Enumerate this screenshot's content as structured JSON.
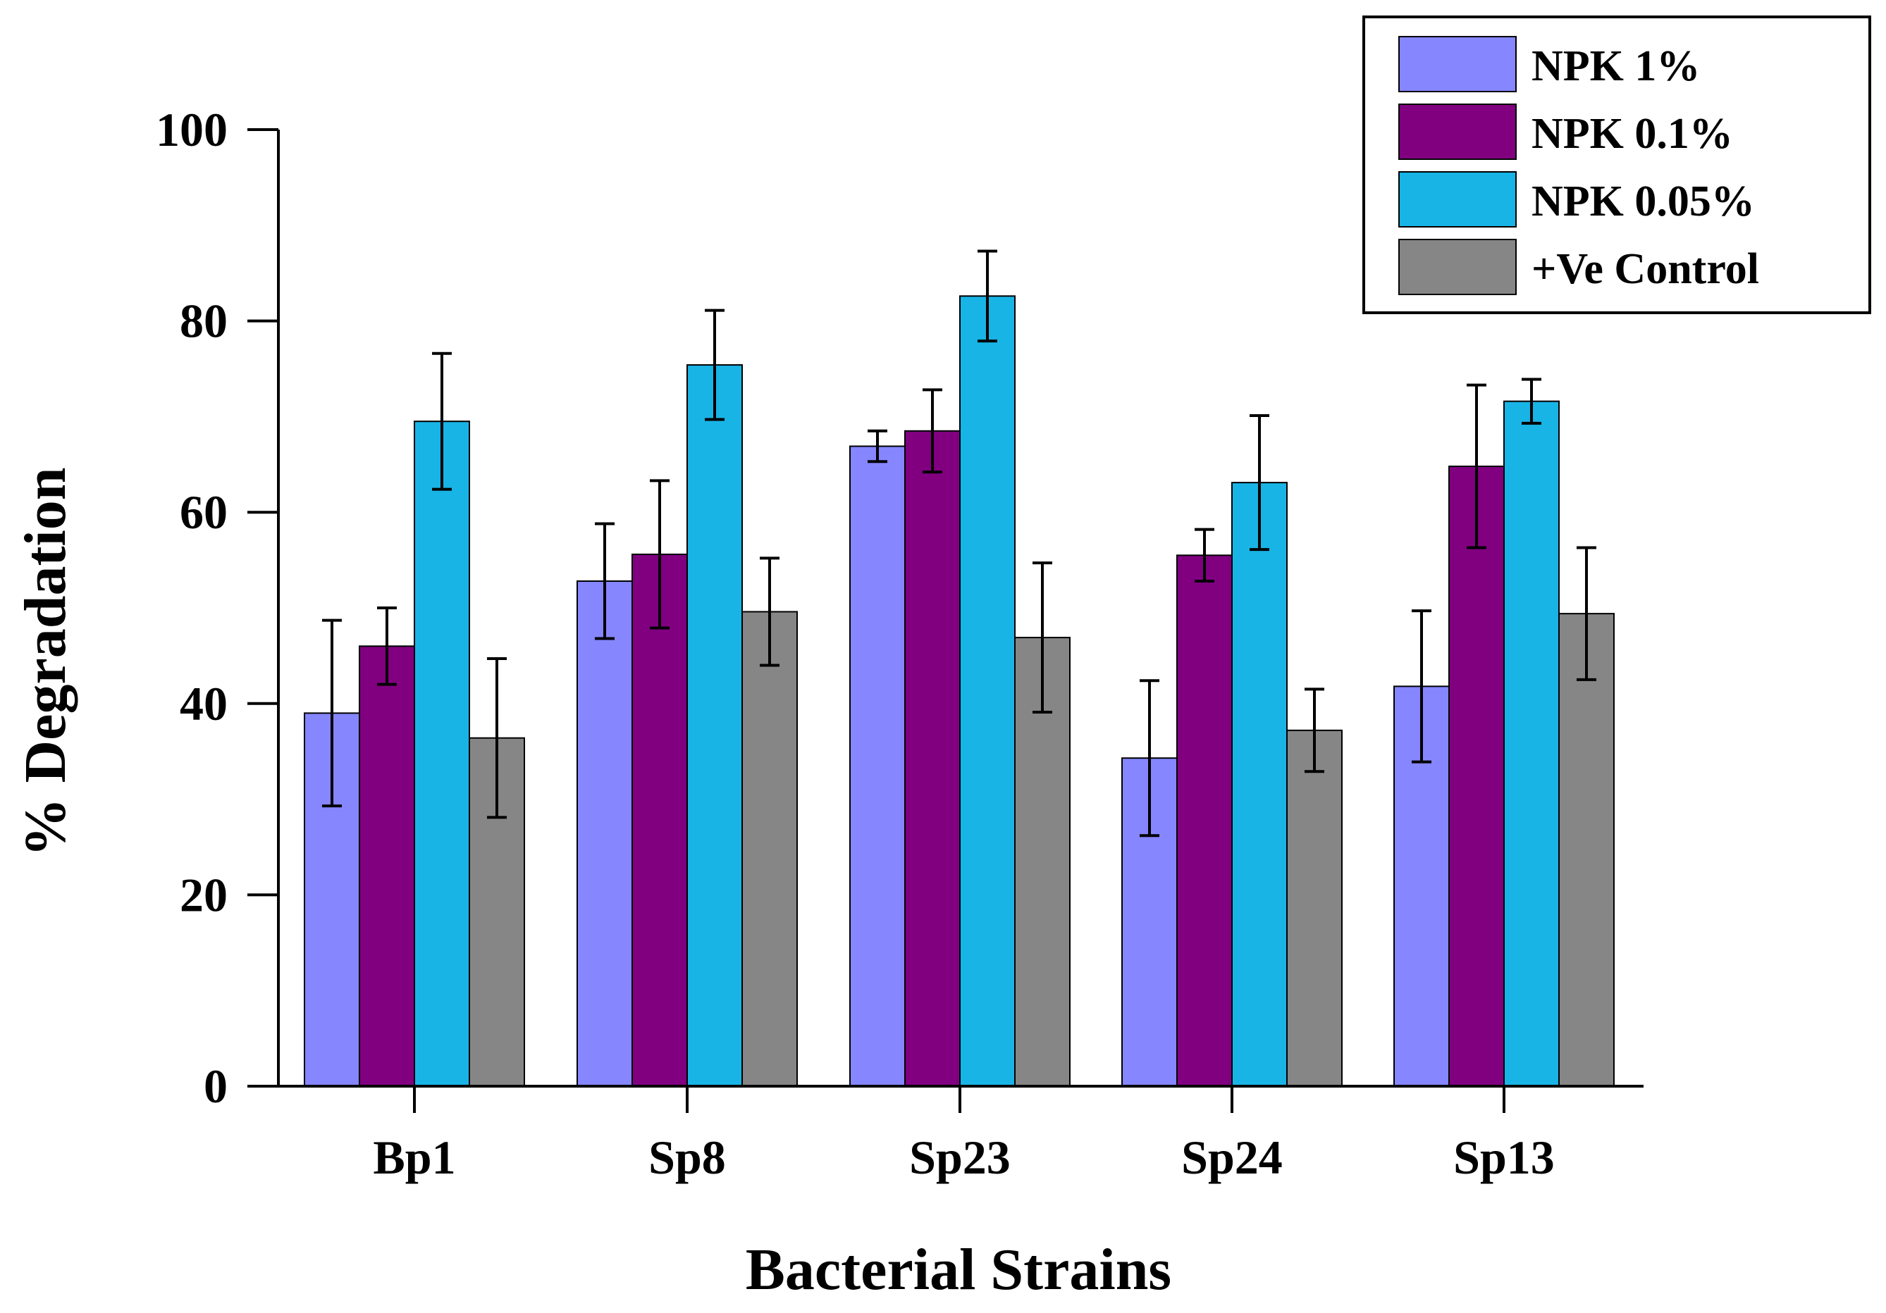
{
  "chart_data": {
    "type": "bar",
    "title": "",
    "xlabel": "Bacterial Strains",
    "ylabel": "% Degradation",
    "ylim": [
      0,
      100
    ],
    "yticks": [
      "0",
      "20",
      "40",
      "60",
      "80",
      "100"
    ],
    "categories": [
      "Bp1",
      "Sp8",
      "Sp23",
      "Sp24",
      "Sp13"
    ],
    "grid": false,
    "legend_position": "top-right",
    "series": [
      {
        "name": "NPK 1%",
        "color": "#8686ff",
        "values": [
          39.0,
          52.8,
          66.9,
          34.3,
          41.8
        ],
        "errors": [
          9.7,
          6.0,
          1.6,
          8.1,
          7.9
        ]
      },
      {
        "name": "NPK 0.1%",
        "color": "#800080",
        "values": [
          46.0,
          55.6,
          68.5,
          55.5,
          64.8
        ],
        "errors": [
          4.0,
          7.7,
          4.3,
          2.7,
          8.5
        ]
      },
      {
        "name": "NPK 0.05%",
        "color": "#19b4e6",
        "values": [
          69.5,
          75.4,
          82.6,
          63.1,
          71.6
        ],
        "errors": [
          7.1,
          5.7,
          4.7,
          7.0,
          2.3
        ]
      },
      {
        "name": "+Ve Control",
        "color": "#868686",
        "values": [
          36.4,
          49.6,
          46.9,
          37.2,
          49.4
        ],
        "errors": [
          8.3,
          5.6,
          7.8,
          4.3,
          6.9
        ]
      }
    ]
  }
}
